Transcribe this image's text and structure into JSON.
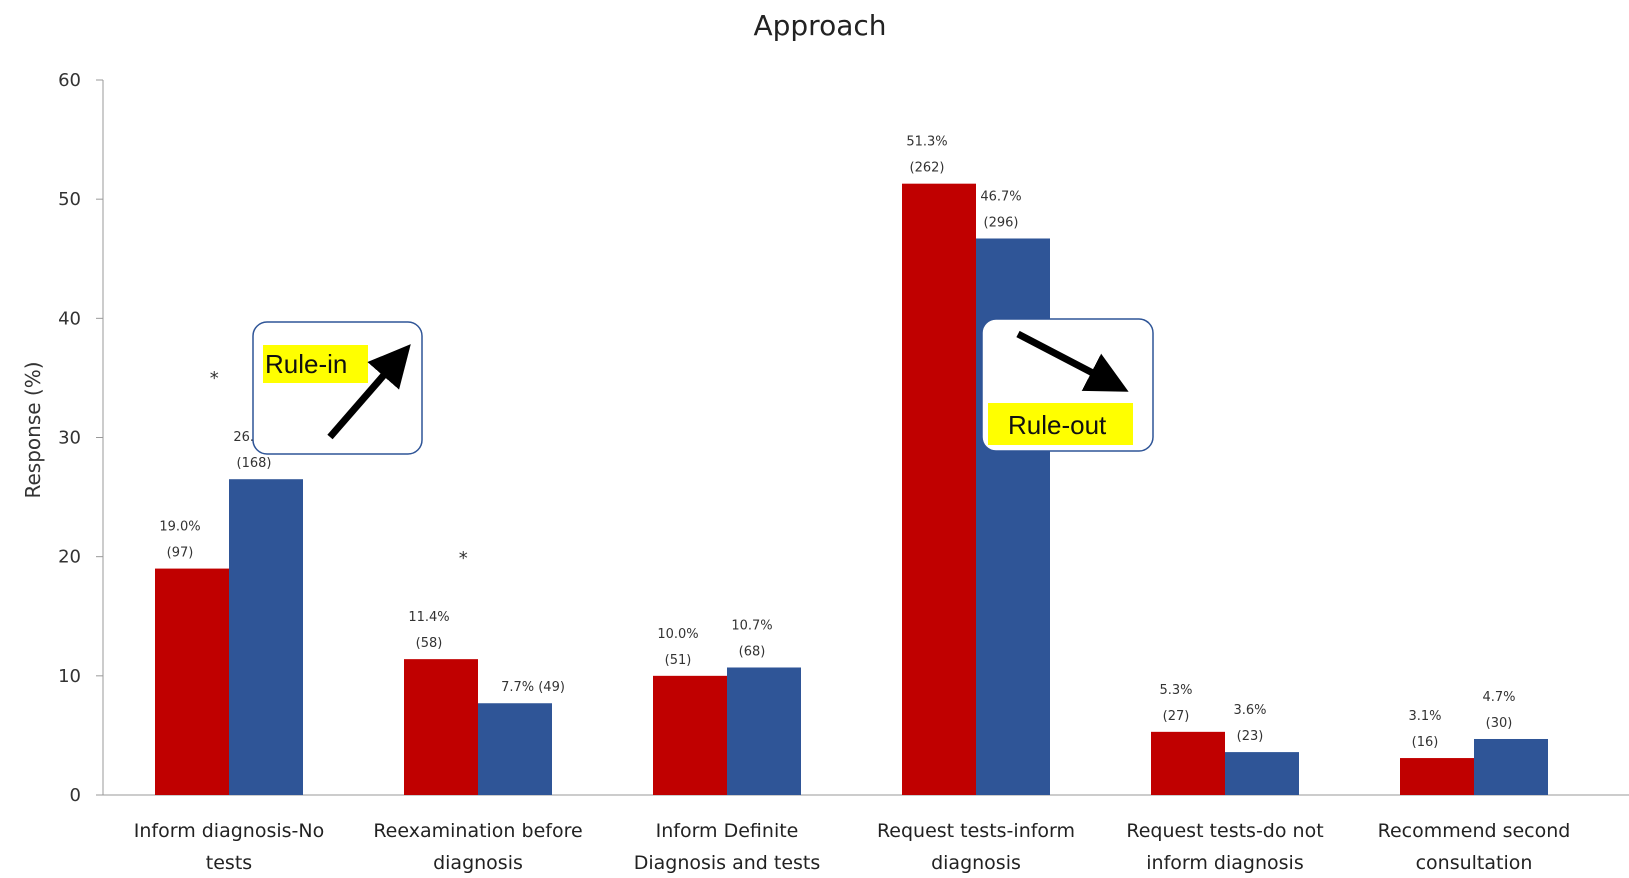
{
  "chart_data": {
    "type": "bar",
    "title": "Approach",
    "xlabel": "",
    "ylabel": "Response (%)",
    "ylim": [
      0,
      60
    ],
    "yticks": [
      0,
      10,
      20,
      30,
      40,
      50,
      60
    ],
    "grid": false,
    "categories": [
      [
        "Inform diagnosis-No",
        "tests"
      ],
      [
        "Reexamination before",
        "diagnosis"
      ],
      [
        "Inform Definite",
        "Diagnosis and tests"
      ],
      [
        "Request tests-inform",
        "diagnosis"
      ],
      [
        "Request tests-do not",
        "inform diagnosis"
      ],
      [
        "Recommend second",
        "consultation"
      ]
    ],
    "series": [
      {
        "color": "#c00000",
        "values": [
          19.0,
          11.4,
          10.0,
          51.3,
          5.3,
          3.1
        ],
        "labels": [
          [
            "19.0%",
            "(97)"
          ],
          [
            "11.4%",
            "(58)"
          ],
          [
            "10.0%",
            "(51)"
          ],
          [
            "51.3%",
            "(262)"
          ],
          [
            "5.3%",
            "(27)"
          ],
          [
            "3.1%",
            "(16)"
          ]
        ]
      },
      {
        "color": "#2f5597",
        "values": [
          26.5,
          7.7,
          10.7,
          46.7,
          3.6,
          4.7
        ],
        "labels": [
          [
            "26.5%",
            "(168)"
          ],
          [
            "7.7% (49)"
          ],
          [
            "10.7%",
            "(68)"
          ],
          [
            "46.7%",
            "(296)"
          ],
          [
            "3.6%",
            "(23)"
          ],
          [
            "4.7%",
            "(30)"
          ]
        ]
      }
    ],
    "significance": [
      {
        "category": 0,
        "marker": "*"
      },
      {
        "category": 1,
        "marker": "*"
      }
    ],
    "annotations": [
      {
        "text": "Rule-in",
        "highlight": "#ffff00",
        "arrow": "up-right",
        "near_category": 0
      },
      {
        "text": "Rule-out",
        "highlight": "#ffff00",
        "arrow": "down-right",
        "near_category": 3
      }
    ]
  }
}
